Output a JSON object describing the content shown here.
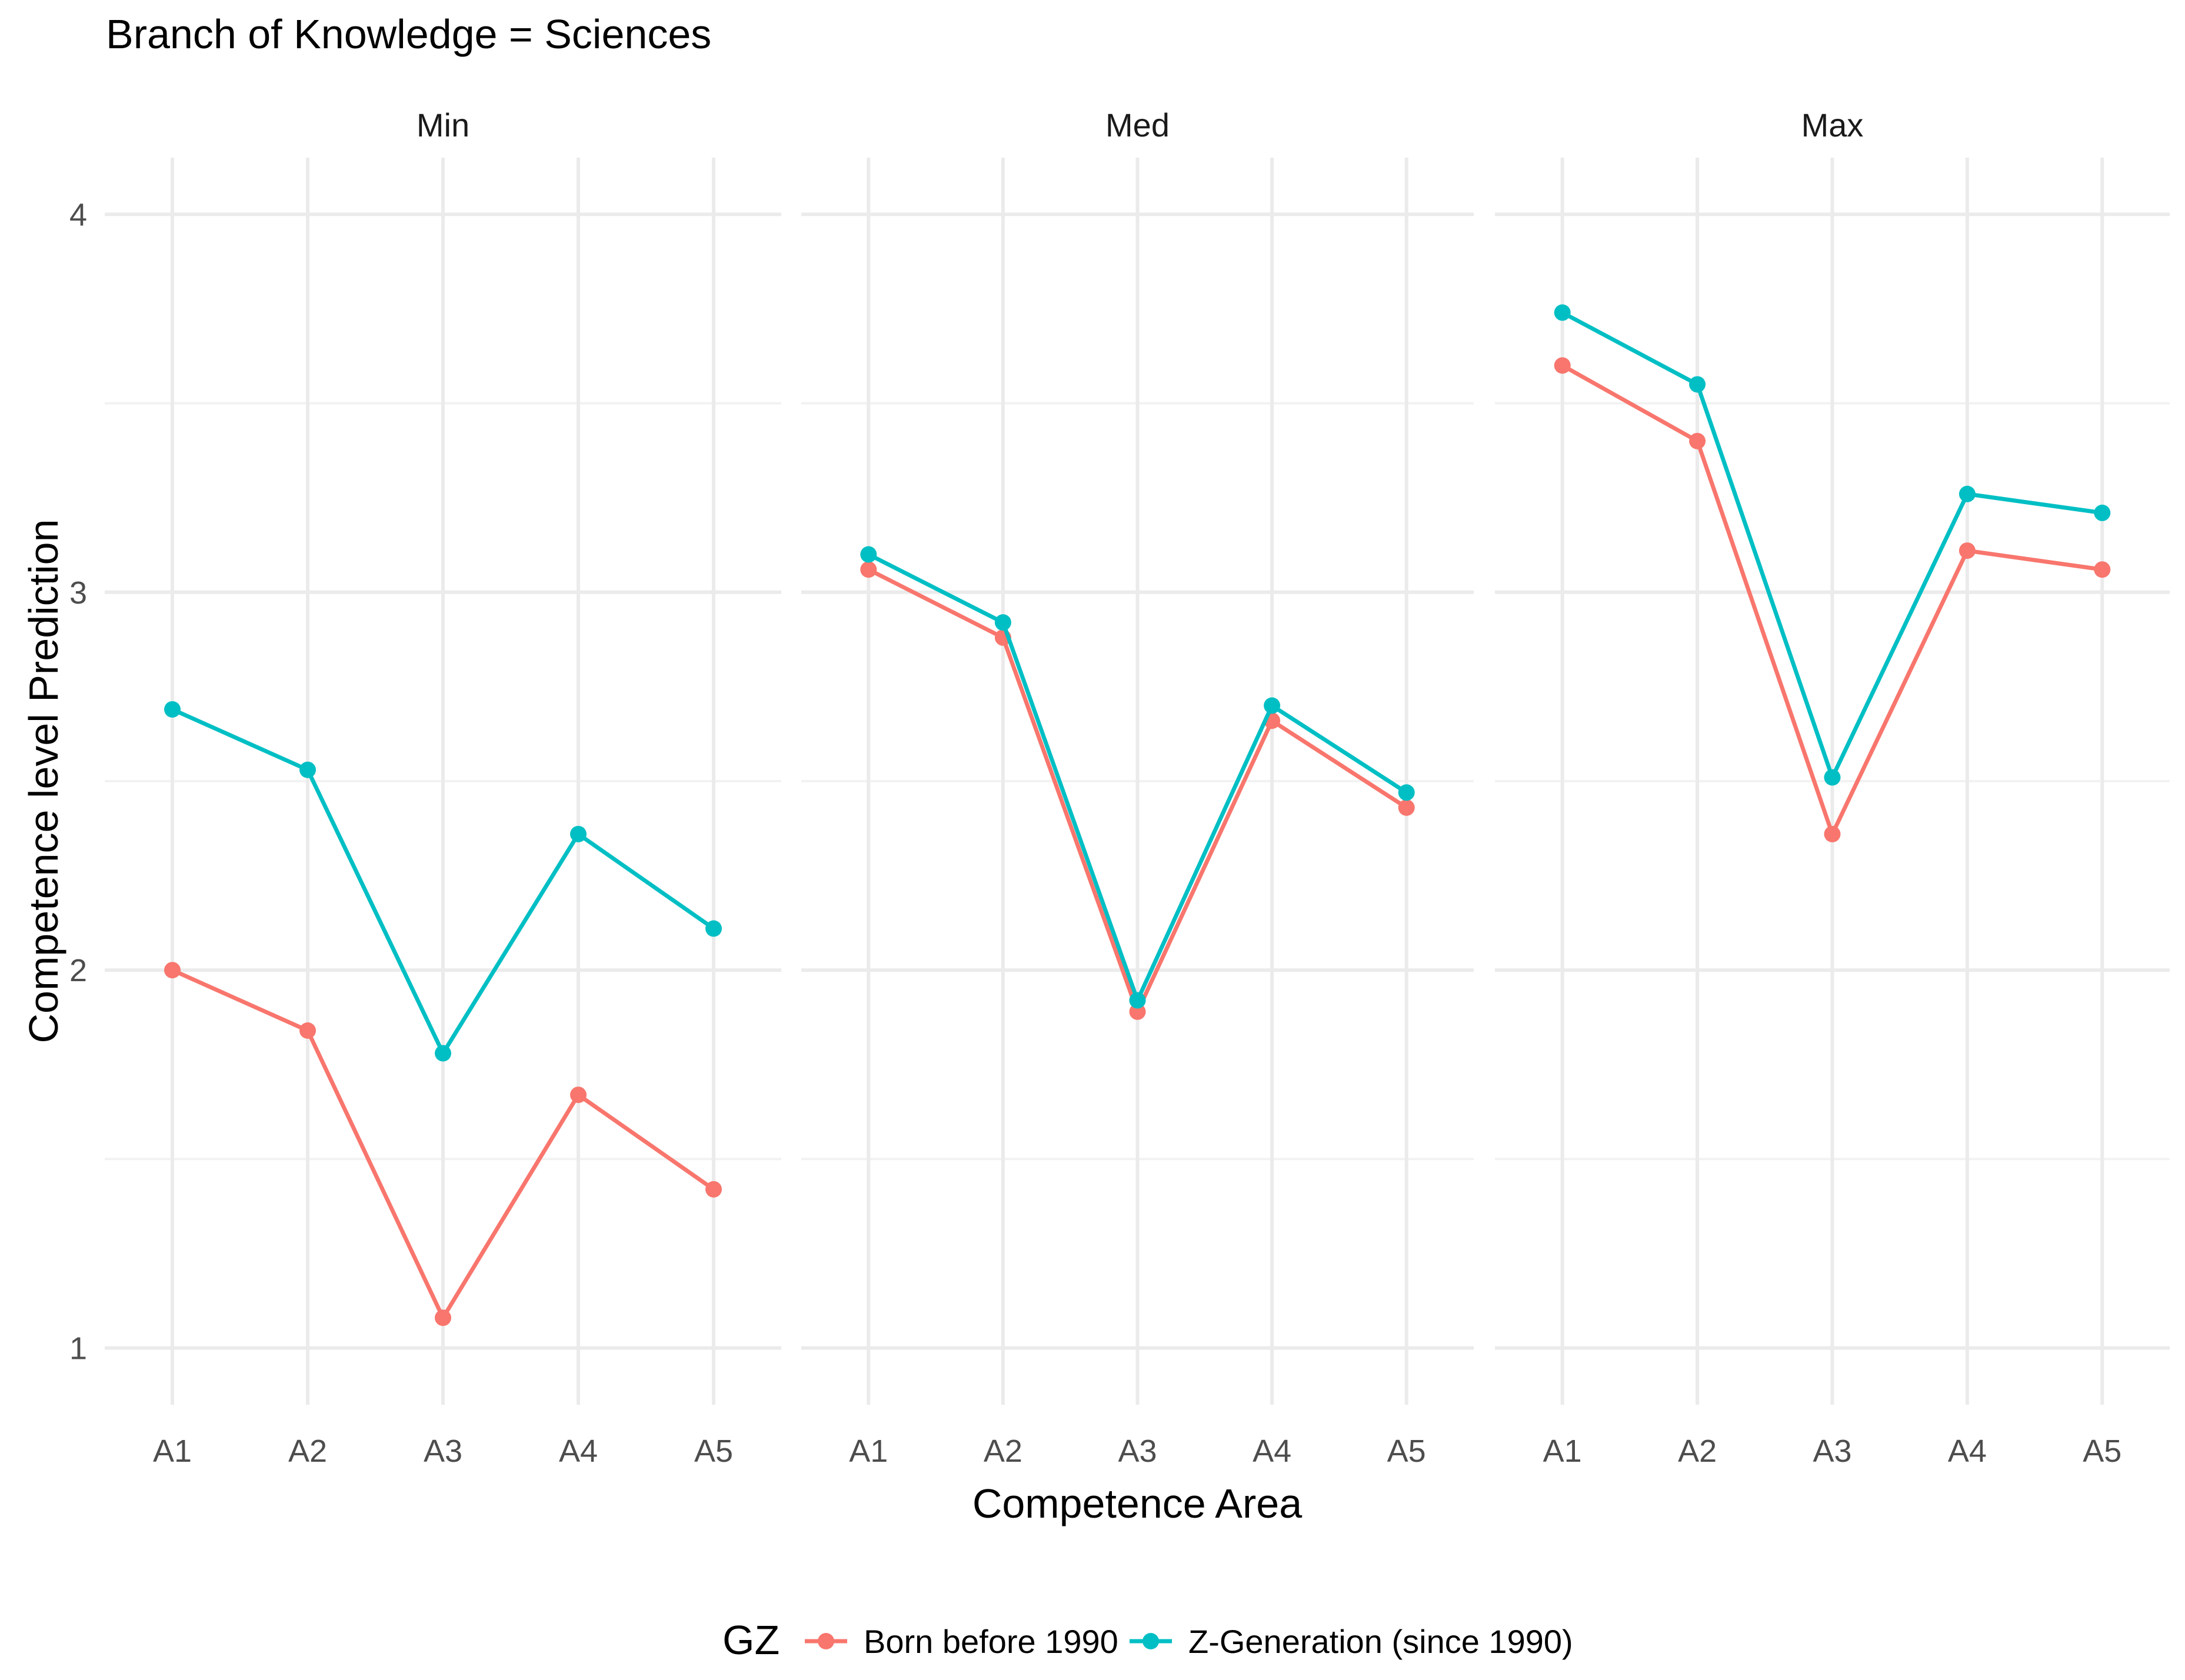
{
  "chart_data": {
    "type": "line",
    "title": "Branch of Knowledge = Sciences",
    "xlabel": "Competence Area",
    "ylabel": "Competence level Prediction",
    "categories": [
      "A1",
      "A2",
      "A3",
      "A4",
      "A5"
    ],
    "ylim": [
      0.85,
      4.15
    ],
    "yticks": [
      1,
      2,
      3,
      4
    ],
    "grid": true,
    "legend": {
      "title": "GZ",
      "position": "bottom"
    },
    "panels": [
      {
        "label": "Min",
        "series": [
          {
            "name": "Born before 1990",
            "color": "#F8766D",
            "values": [
              2.0,
              1.84,
              1.08,
              1.67,
              1.42
            ]
          },
          {
            "name": "Z-Generation (since 1990)",
            "color": "#00BFC4",
            "values": [
              2.69,
              2.53,
              1.78,
              2.36,
              2.11
            ]
          }
        ]
      },
      {
        "label": "Med",
        "series": [
          {
            "name": "Born before 1990",
            "color": "#F8766D",
            "values": [
              3.06,
              2.88,
              1.89,
              2.66,
              2.43
            ]
          },
          {
            "name": "Z-Generation (since 1990)",
            "color": "#00BFC4",
            "values": [
              3.1,
              2.92,
              1.92,
              2.7,
              2.47
            ]
          }
        ]
      },
      {
        "label": "Max",
        "series": [
          {
            "name": "Born before 1990",
            "color": "#F8766D",
            "values": [
              3.6,
              3.4,
              2.36,
              3.11,
              3.06
            ]
          },
          {
            "name": "Z-Generation (since 1990)",
            "color": "#00BFC4",
            "values": [
              3.74,
              3.55,
              2.51,
              3.26,
              3.21
            ]
          }
        ]
      }
    ]
  }
}
